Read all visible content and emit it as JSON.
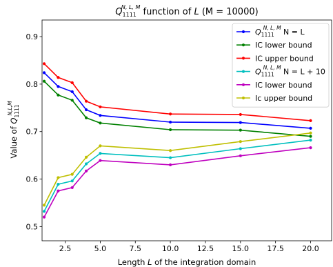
{
  "chart_data": {
    "type": "line",
    "title": "Q₁₁₁₁^{N,L,M} function of L (M = 10000)",
    "title_parts": {
      "q": "Q",
      "sub": "1111",
      "sup": "N, L, M",
      "rest": " function of ",
      "L": "L",
      "tail": " (M = 10000)"
    },
    "xlabel": "Length L of the integration domain",
    "ylabel": "Value of Q₁₁₁₁^{N,L,M}",
    "xlim": [
      0.85,
      21.5
    ],
    "ylim": [
      0.47,
      0.935
    ],
    "xticks": [
      "2.5",
      "5.0",
      "7.5",
      "10.0",
      "12.5",
      "15.0",
      "17.5",
      "20.0"
    ],
    "yticks": [
      "0.5",
      "0.6",
      "0.7",
      "0.8",
      "0.9"
    ],
    "x": [
      1,
      2,
      3,
      4,
      5,
      10,
      15,
      20
    ],
    "series": [
      {
        "name": "Q₁₁₁₁^{N,L,M} N = L",
        "color": "#0000ff",
        "values": [
          0.824,
          0.795,
          0.784,
          0.746,
          0.734,
          0.72,
          0.719,
          0.707
        ]
      },
      {
        "name": "IC lower bound",
        "color": "#008000",
        "values": [
          0.806,
          0.777,
          0.766,
          0.729,
          0.718,
          0.704,
          0.703,
          0.69
        ]
      },
      {
        "name": "IC upper bound",
        "color": "#ff0000",
        "values": [
          0.843,
          0.814,
          0.803,
          0.764,
          0.752,
          0.737,
          0.736,
          0.723
        ]
      },
      {
        "name": "Q₁₁₁₁^{N,L,M} N = L + 10",
        "color": "#00bfbf",
        "values": [
          0.532,
          0.589,
          0.596,
          0.632,
          0.654,
          0.645,
          0.664,
          0.682
        ]
      },
      {
        "name": "IC lower bound",
        "color": "#bf00bf",
        "values": [
          0.52,
          0.575,
          0.582,
          0.617,
          0.639,
          0.63,
          0.649,
          0.666
        ]
      },
      {
        "name": "Ic upper bound",
        "color": "#bfbf00",
        "values": [
          0.545,
          0.603,
          0.61,
          0.646,
          0.67,
          0.66,
          0.679,
          0.697
        ]
      }
    ],
    "legend": [
      {
        "prefix": "Q",
        "sub": "1111",
        "sup": "N, L, M",
        "suffix": " N = L"
      },
      {
        "text": "IC lower bound"
      },
      {
        "text": "IC upper bound"
      },
      {
        "prefix": "Q",
        "sub": "1111",
        "sup": "N, L, M",
        "suffix": " N = L + 10"
      },
      {
        "text": "IC lower bound"
      },
      {
        "text": "Ic upper bound"
      }
    ],
    "legend_position": "top-right",
    "grid": false
  }
}
